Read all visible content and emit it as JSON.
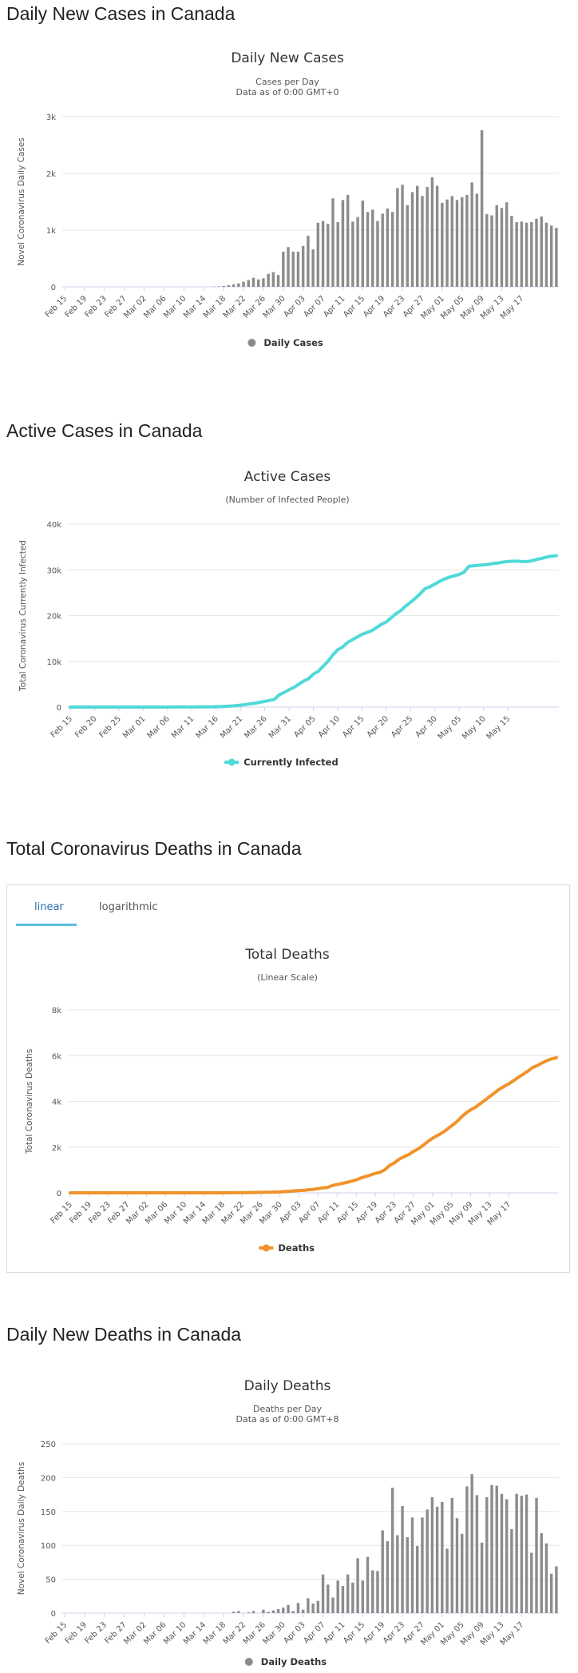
{
  "headings": {
    "daily_cases": "Daily New Cases in Canada",
    "active_cases": "Active Cases in Canada",
    "total_deaths": "Total Coronavirus Deaths in Canada",
    "daily_deaths": "Daily New Deaths in Canada"
  },
  "tabs": {
    "linear": "linear",
    "logarithmic": "logarithmic"
  },
  "colors": {
    "bars": "#8c8c8c",
    "active": "#50d9d9",
    "deaths": "#f0932b",
    "grid": "#e6e6e6"
  },
  "chart_data": [
    {
      "id": "daily_cases",
      "type": "bar",
      "title": "Daily New Cases",
      "subtitle": [
        "Cases per Day",
        "Data as of 0:00 GMT+0"
      ],
      "ylabel": "Novel Coronavirus Daily Cases",
      "legend": "Daily Cases",
      "ylim": [
        0,
        3000
      ],
      "yticks": [
        "0",
        "1k",
        "2k",
        "3k"
      ],
      "x_labels": [
        "Feb 15",
        "Feb 19",
        "Feb 23",
        "Feb 27",
        "Mar 02",
        "Mar 06",
        "Mar 10",
        "Mar 14",
        "Mar 18",
        "Mar 22",
        "Mar 26",
        "Mar 30",
        "Apr 03",
        "Apr 07",
        "Apr 11",
        "Apr 15",
        "Apr 19",
        "Apr 23",
        "Apr 27",
        "May 01",
        "May 05",
        "May 09",
        "May 13",
        "May 17"
      ],
      "label_every": 4,
      "categories_start": "Feb 15",
      "values": [
        0,
        0,
        0,
        0,
        0,
        0,
        0,
        0,
        0,
        0,
        0,
        0,
        0,
        0,
        0,
        0,
        0,
        0,
        0,
        0,
        0,
        0,
        0,
        0,
        0,
        0,
        0,
        0,
        0,
        0,
        5,
        8,
        15,
        30,
        45,
        60,
        90,
        120,
        160,
        130,
        150,
        230,
        260,
        210,
        620,
        700,
        620,
        620,
        720,
        900,
        660,
        1130,
        1160,
        1110,
        1560,
        1140,
        1530,
        1620,
        1150,
        1230,
        1520,
        1320,
        1360,
        1160,
        1290,
        1380,
        1320,
        1740,
        1800,
        1440,
        1670,
        1780,
        1600,
        1760,
        1930,
        1780,
        1480,
        1540,
        1600,
        1530,
        1580,
        1620,
        1840,
        1640,
        2760,
        1280,
        1260,
        1440,
        1390,
        1490,
        1250,
        1140,
        1150,
        1130,
        1140,
        1200,
        1240,
        1130,
        1080,
        1040
      ]
    },
    {
      "id": "active_cases",
      "type": "line",
      "title": "Active Cases",
      "subtitle": [
        "(Number of Infected People)"
      ],
      "ylabel": "Total Coronavirus Currently Infected",
      "legend": "Currently Infected",
      "ylim": [
        0,
        40000
      ],
      "yticks": [
        "0",
        "10k",
        "20k",
        "30k",
        "40k"
      ],
      "x_labels": [
        "Feb 15",
        "Feb 20",
        "Feb 25",
        "Mar 01",
        "Mar 06",
        "Mar 11",
        "Mar 16",
        "Mar 21",
        "Mar 26",
        "Mar 31",
        "Apr 05",
        "Apr 10",
        "Apr 15",
        "Apr 20",
        "Apr 25",
        "Apr 30",
        "May 05",
        "May 10",
        "May 15"
      ],
      "label_every": 5,
      "values": [
        5,
        5,
        5,
        5,
        5,
        5,
        5,
        5,
        5,
        5,
        5,
        5,
        5,
        5,
        5,
        5,
        5,
        6,
        6,
        7,
        8,
        9,
        10,
        12,
        15,
        20,
        25,
        30,
        40,
        55,
        70,
        110,
        160,
        230,
        310,
        420,
        560,
        700,
        850,
        1050,
        1250,
        1450,
        1700,
        2700,
        3200,
        3800,
        4300,
        5000,
        5700,
        6200,
        7200,
        7800,
        8900,
        10000,
        11400,
        12500,
        13100,
        14100,
        14700,
        15300,
        15900,
        16300,
        16700,
        17400,
        18100,
        18600,
        19500,
        20400,
        21100,
        22100,
        22900,
        23800,
        24800,
        25900,
        26300,
        26900,
        27500,
        28000,
        28400,
        28700,
        29000,
        29500,
        30800,
        30900,
        31000,
        31100,
        31200,
        31400,
        31500,
        31700,
        31800,
        31900,
        31900,
        31800,
        31800,
        32000,
        32300,
        32500,
        32800,
        33000,
        33100
      ]
    },
    {
      "id": "total_deaths",
      "type": "line",
      "title": "Total Deaths",
      "subtitle": [
        "(Linear Scale)"
      ],
      "ylabel": "Total Coronavirus Deaths",
      "legend": "Deaths",
      "ylim": [
        0,
        8000
      ],
      "yticks": [
        "0",
        "2k",
        "4k",
        "6k",
        "8k"
      ],
      "x_labels": [
        "Feb 15",
        "Feb 19",
        "Feb 23",
        "Feb 27",
        "Mar 02",
        "Mar 06",
        "Mar 10",
        "Mar 14",
        "Mar 18",
        "Mar 22",
        "Mar 26",
        "Mar 30",
        "Apr 03",
        "Apr 07",
        "Apr 11",
        "Apr 15",
        "Apr 19",
        "Apr 23",
        "Apr 27",
        "May 01",
        "May 05",
        "May 09",
        "May 13",
        "May 17"
      ],
      "label_every": 4,
      "values": [
        0,
        0,
        0,
        0,
        0,
        0,
        0,
        0,
        0,
        0,
        0,
        0,
        0,
        0,
        0,
        0,
        0,
        0,
        0,
        0,
        0,
        0,
        0,
        0,
        0,
        0,
        0,
        1,
        1,
        1,
        1,
        1,
        1,
        2,
        4,
        7,
        9,
        12,
        13,
        19,
        21,
        24,
        26,
        35,
        39,
        54,
        66,
        89,
        101,
        109,
        135,
        154,
        182,
        215,
        239,
        323,
        362,
        407,
        458,
        509,
        565,
        654,
        714,
        781,
        849,
        903,
        1010,
        1194,
        1310,
        1470,
        1580,
        1670,
        1810,
        1920,
        2070,
        2240,
        2390,
        2500,
        2620,
        2770,
        2930,
        3090,
        3300,
        3490,
        3630,
        3740,
        3900,
        4050,
        4210,
        4370,
        4530,
        4650,
        4770,
        4900,
        5050,
        5180,
        5320,
        5480,
        5570,
        5680,
        5780,
        5860,
        5910
      ]
    },
    {
      "id": "daily_deaths",
      "type": "bar",
      "title": "Daily Deaths",
      "subtitle": [
        "Deaths per Day",
        "Data as of 0:00 GMT+8"
      ],
      "ylabel": "Novel Coronavirus Daily Deaths",
      "legend": "Daily Deaths",
      "ylim": [
        0,
        250
      ],
      "yticks": [
        "0",
        "50",
        "100",
        "150",
        "200",
        "250"
      ],
      "x_labels": [
        "Feb 15",
        "Feb 19",
        "Feb 23",
        "Feb 27",
        "Mar 02",
        "Mar 06",
        "Mar 10",
        "Mar 14",
        "Mar 18",
        "Mar 22",
        "Mar 26",
        "Mar 30",
        "Apr 03",
        "Apr 07",
        "Apr 11",
        "Apr 15",
        "Apr 19",
        "Apr 23",
        "Apr 27",
        "May 01",
        "May 05",
        "May 09",
        "May 13",
        "May 17"
      ],
      "label_every": 4,
      "values": [
        0,
        0,
        0,
        0,
        0,
        0,
        0,
        0,
        0,
        0,
        0,
        0,
        0,
        0,
        0,
        0,
        0,
        0,
        0,
        0,
        0,
        0,
        0,
        0,
        0,
        0,
        0,
        0,
        0,
        0,
        0,
        0,
        0,
        0,
        2,
        3,
        0,
        1,
        3,
        0,
        5,
        2,
        4,
        6,
        8,
        12,
        3,
        15,
        5,
        22,
        14,
        18,
        57,
        42,
        23,
        48,
        40,
        57,
        45,
        81,
        48,
        83,
        63,
        62,
        122,
        106,
        185,
        115,
        158,
        112,
        141,
        99,
        141,
        153,
        171,
        157,
        164,
        95,
        170,
        140,
        117,
        187,
        205,
        174,
        104,
        171,
        189,
        188,
        176,
        168,
        124,
        176,
        173,
        175,
        89,
        170,
        118,
        103,
        58,
        69
      ]
    }
  ]
}
